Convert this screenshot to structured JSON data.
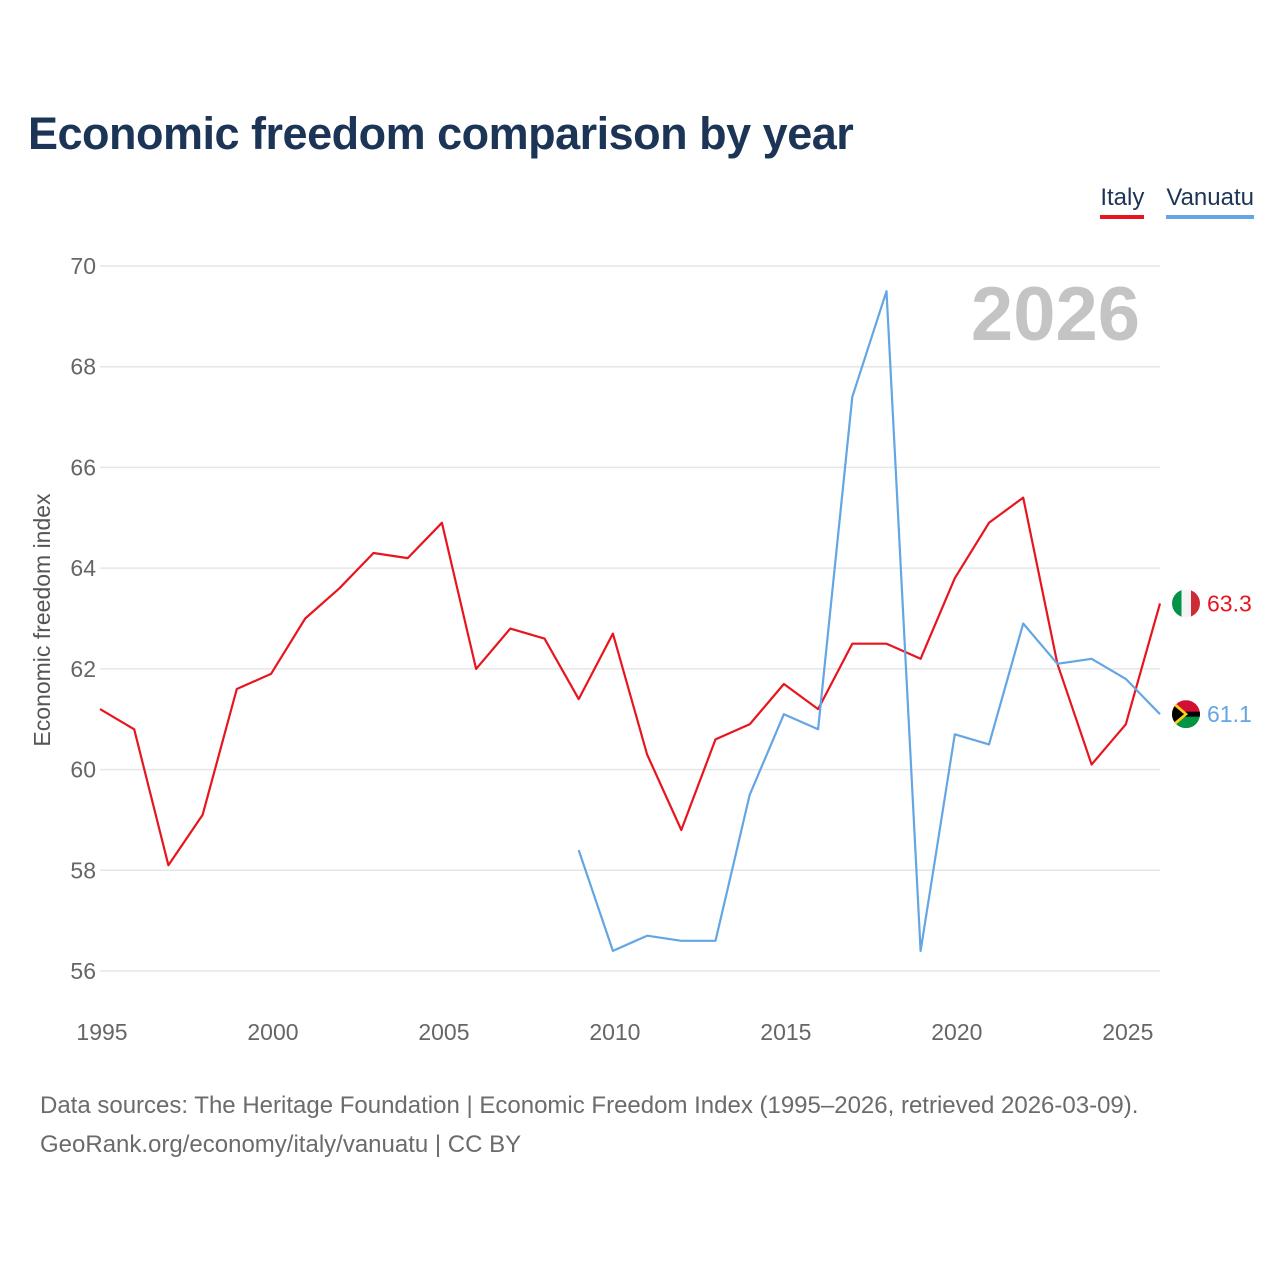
{
  "title": "Economic freedom comparison by year",
  "year_watermark": "2026",
  "legend": [
    {
      "label": "Italy",
      "color": "#e8141e"
    },
    {
      "label": "Vanuatu",
      "color": "#63a6e3"
    }
  ],
  "footer": {
    "line1": "Data sources: The Heritage Foundation | Economic Freedom Index (1995–2026, retrieved 2026-03-09).",
    "line2": "GeoRank.org/economy/italy/vanuatu | CC BY"
  },
  "chart_data": {
    "type": "line",
    "title": "Economic freedom comparison by year",
    "xlabel": "",
    "ylabel": "Economic freedom index",
    "xlim": [
      1995,
      2026
    ],
    "ylim": [
      56,
      70
    ],
    "xticks": [
      1995,
      2000,
      2005,
      2010,
      2015,
      2020,
      2025
    ],
    "yticks": [
      56,
      58,
      60,
      62,
      64,
      66,
      68,
      70
    ],
    "grid": "horizontal",
    "legend_position": "top-right",
    "series": [
      {
        "name": "Italy",
        "color": "#e8141e",
        "end_label": "63.3",
        "x": [
          1995,
          1996,
          1997,
          1998,
          1999,
          2000,
          2001,
          2002,
          2003,
          2004,
          2005,
          2006,
          2007,
          2008,
          2009,
          2010,
          2011,
          2012,
          2013,
          2014,
          2015,
          2016,
          2017,
          2018,
          2019,
          2020,
          2021,
          2022,
          2023,
          2024,
          2025,
          2026
        ],
        "values": [
          61.2,
          60.8,
          58.1,
          59.1,
          61.6,
          61.9,
          63.0,
          63.6,
          64.3,
          64.2,
          64.9,
          62.0,
          62.8,
          62.6,
          61.4,
          62.7,
          60.3,
          58.8,
          60.6,
          60.9,
          61.7,
          61.2,
          62.5,
          62.5,
          62.2,
          63.8,
          64.9,
          65.4,
          62.1,
          60.1,
          60.9,
          63.3
        ]
      },
      {
        "name": "Vanuatu",
        "color": "#63a6e3",
        "end_label": "61.1",
        "x": [
          2009,
          2010,
          2011,
          2012,
          2013,
          2014,
          2015,
          2016,
          2017,
          2018,
          2019,
          2020,
          2021,
          2022,
          2023,
          2024,
          2025,
          2026
        ],
        "values": [
          58.4,
          56.4,
          56.7,
          56.6,
          56.6,
          59.5,
          61.1,
          60.8,
          67.4,
          69.5,
          56.4,
          60.7,
          60.5,
          62.9,
          62.1,
          62.2,
          61.8,
          61.1
        ]
      }
    ]
  }
}
